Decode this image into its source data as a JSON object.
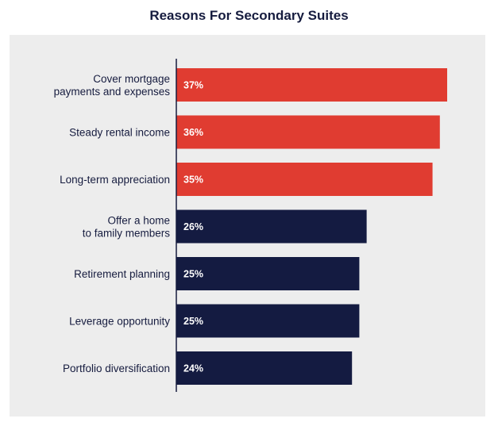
{
  "chart_data": {
    "type": "bar",
    "orientation": "horizontal",
    "title": "Reasons For Secondary Suites",
    "categories": [
      [
        "Cover mortgage",
        "payments and expenses"
      ],
      [
        "Steady rental income"
      ],
      [
        "Long-term appreciation"
      ],
      [
        "Offer a home",
        "to family members"
      ],
      [
        "Retirement planning"
      ],
      [
        "Leverage opportunity"
      ],
      [
        "Portfolio diversification"
      ]
    ],
    "values": [
      37,
      36,
      35,
      26,
      25,
      25,
      24
    ],
    "value_labels": [
      "37%",
      "36%",
      "35%",
      "26%",
      "25%",
      "25%",
      "24%"
    ],
    "bar_colors": [
      "#e03c31",
      "#e03c31",
      "#e03c31",
      "#141b41",
      "#141b41",
      "#141b41",
      "#141b41"
    ],
    "xlim": [
      0,
      37
    ],
    "xlabel": "",
    "ylabel": "",
    "grid": false,
    "legend": "none"
  },
  "colors": {
    "title": "#161c3f",
    "panel_background": "#ededed",
    "axis_line": "#161c3f",
    "highlight_bar": "#e03c31",
    "default_bar": "#141b41"
  }
}
